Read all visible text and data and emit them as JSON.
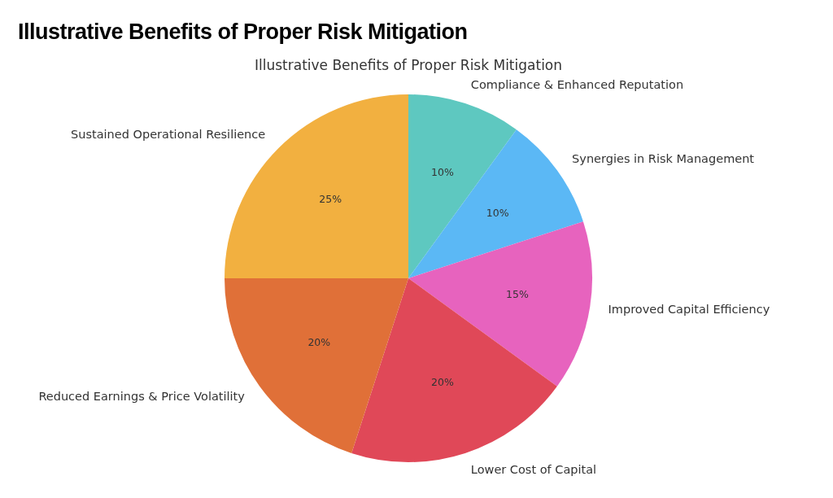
{
  "chart_data": {
    "type": "pie",
    "title": "Illustrative Benefits of Proper Risk Mitigation",
    "subtitle": "Illustrative Benefits of Proper Risk Mitigation",
    "categories": [
      "Compliance & Enhanced Reputation",
      "Synergies in Risk Management",
      "Improved Capital Efficiency",
      "Lower Cost of Capital",
      "Reduced Earnings & Price Volatility",
      "Sustained Operational Resilience"
    ],
    "values": [
      10,
      10,
      15,
      20,
      20,
      25
    ],
    "value_labels": [
      "10%",
      "10%",
      "15%",
      "20%",
      "20%",
      "25%"
    ],
    "colors": [
      "#5ec8c0",
      "#5bb8f5",
      "#e763be",
      "#e04858",
      "#e07038",
      "#f2b040"
    ]
  }
}
